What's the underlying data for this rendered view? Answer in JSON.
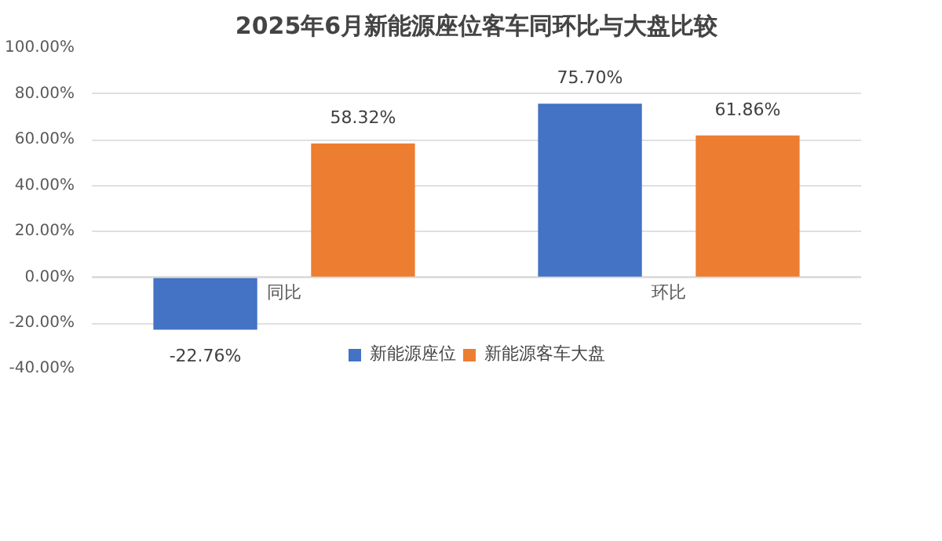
{
  "chart_data": {
    "type": "bar",
    "title": "2025年6月新能源座位客车同环比与大盘比较",
    "categories": [
      "同比",
      "环比"
    ],
    "series": [
      {
        "name": "新能源座位",
        "color": "#4472c4",
        "values": [
          -22.76,
          75.7
        ],
        "value_labels": [
          "-22.76%",
          "75.70%"
        ]
      },
      {
        "name": "新能源客车大盘",
        "color": "#ed7d31",
        "values": [
          58.32,
          61.86
        ],
        "value_labels": [
          "58.32%",
          "61.86%"
        ]
      }
    ],
    "ylim": [
      -40,
      100
    ],
    "yticks": [
      {
        "value": -40,
        "label": "-40.00%"
      },
      {
        "value": -20,
        "label": "-20.00%"
      },
      {
        "value": 0,
        "label": "0.00%"
      },
      {
        "value": 20,
        "label": "20.00%"
      },
      {
        "value": 40,
        "label": "40.00%"
      },
      {
        "value": 60,
        "label": "60.00%"
      },
      {
        "value": 80,
        "label": "80.00%"
      },
      {
        "value": 100,
        "label": "100.00%"
      }
    ],
    "grid": "y",
    "legend": "bottom"
  }
}
